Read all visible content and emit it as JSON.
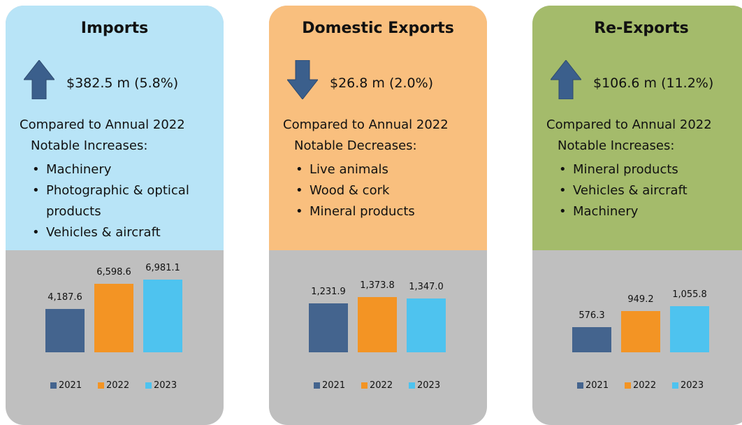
{
  "chart_data": [
    {
      "type": "bar",
      "title": "Imports",
      "arrow": "up",
      "panel_color": "#b8e4f7",
      "summary": "$382.5 m (5.8%)",
      "comparison": "Compared to Annual 2022",
      "notable_heading": "Notable Increases:",
      "items": [
        "Machinery",
        "Photographic & optical products",
        "Vehicles & aircraft"
      ],
      "categories": [
        "2021",
        "2022",
        "2023"
      ],
      "colors": [
        "#44648e",
        "#f39424",
        "#4ec3ef"
      ],
      "values": [
        4187.6,
        6598.6,
        6981.1
      ],
      "value_labels": [
        "4,187.6",
        "6,598.6",
        "6,981.1"
      ],
      "ylim": [
        0,
        9400
      ]
    },
    {
      "type": "bar",
      "title": "Domestic Exports",
      "arrow": "down",
      "panel_color": "#f9bf7e",
      "summary": "$26.8 m (2.0%)",
      "comparison": "Compared to Annual 2022",
      "notable_heading": "Notable Decreases:",
      "items": [
        "Live animals",
        "Wood & cork",
        "Mineral products"
      ],
      "categories": [
        "2021",
        "2022",
        "2023"
      ],
      "colors": [
        "#44648e",
        "#f39424",
        "#4ec3ef"
      ],
      "values": [
        1231.9,
        1373.8,
        1347.0
      ],
      "value_labels": [
        "1,231.9",
        "1,373.8",
        "1,347.0"
      ],
      "ylim": [
        0,
        2450
      ]
    },
    {
      "type": "bar",
      "title": "Re-Exports",
      "arrow": "up",
      "panel_color": "#a4bb6b",
      "summary": "$106.6 m (11.2%)",
      "comparison": "Compared to Annual 2022",
      "notable_heading": "Notable Increases:",
      "items": [
        "Mineral products",
        "Vehicles & aircraft",
        "Machinery"
      ],
      "categories": [
        "2021",
        "2022",
        "2023"
      ],
      "colors": [
        "#44648e",
        "#f39424",
        "#4ec3ef"
      ],
      "values": [
        576.3,
        949.2,
        1055.8
      ],
      "value_labels": [
        "576.3",
        "949.2",
        "1,055.8"
      ],
      "ylim": [
        0,
        2250
      ]
    }
  ]
}
